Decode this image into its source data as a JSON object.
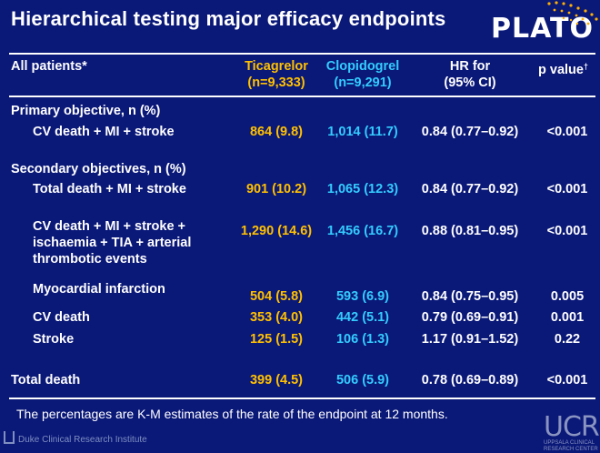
{
  "title": "Hierarchical testing major efficacy endpoints",
  "brand": "PLATO",
  "header": {
    "col1": "All patients*",
    "tica_name": "Ticagrelor",
    "tica_n": "(n=9,333)",
    "clop_name": "Clopidogrel",
    "clop_n": "(n=9,291)",
    "hr_line1": "HR for",
    "hr_line2": "(95% CI)",
    "p_label": "p value",
    "p_sup": "†"
  },
  "sections": {
    "primary": "Primary objective, n (%)",
    "secondary": "Secondary objectives, n (%)"
  },
  "rows": [
    {
      "label": "CV death + MI + stroke",
      "tica": "864 (9.8)",
      "clop": "1,014 (11.7)",
      "hr": "0.84 (0.77–0.92)",
      "p": "<0.001"
    },
    {
      "label": "Total death + MI + stroke",
      "tica": "901 (10.2)",
      "clop": "1,065 (12.3)",
      "hr": "0.84 (0.77–0.92)",
      "p": "<0.001"
    },
    {
      "label_lines": [
        "CV death + MI + stroke +",
        "ischaemia + TIA + arterial",
        "thrombotic events"
      ],
      "tica": "1,290 (14.6)",
      "clop": "1,456 (16.7)",
      "hr": "0.88 (0.81–0.95)",
      "p": "<0.001"
    },
    {
      "label": "Myocardial infarction",
      "tica": "504 (5.8)",
      "clop": "593 (6.9)",
      "hr": "0.84 (0.75–0.95)",
      "p": "0.005"
    },
    {
      "label": "CV death",
      "tica": "353 (4.0)",
      "clop": "442 (5.1)",
      "hr": "0.79 (0.69–0.91)",
      "p": "0.001"
    },
    {
      "label": "Stroke",
      "tica": "125 (1.5)",
      "clop": "106 (1.3)",
      "hr": "1.17 (0.91–1.52)",
      "p": "0.22"
    },
    {
      "label": "Total death",
      "tica": "399 (4.5)",
      "clop": "506 (5.9)",
      "hr": "0.78 (0.69–0.89)",
      "p": "<0.001"
    }
  ],
  "footnote": "The percentages are K-M estimates of the rate of the endpoint at 12 months.",
  "logos": {
    "duke": "Duke Clinical Research Institute",
    "ucr": "UCR",
    "ucr_sub_1": "UPPSALA CLINICAL",
    "ucr_sub_2": "RESEARCH CENTER"
  },
  "colors": {
    "background": "#0a1878",
    "ticagrelor": "#ffc000",
    "clopidogrel": "#33ccff",
    "accent_dots": "#ffb000"
  }
}
